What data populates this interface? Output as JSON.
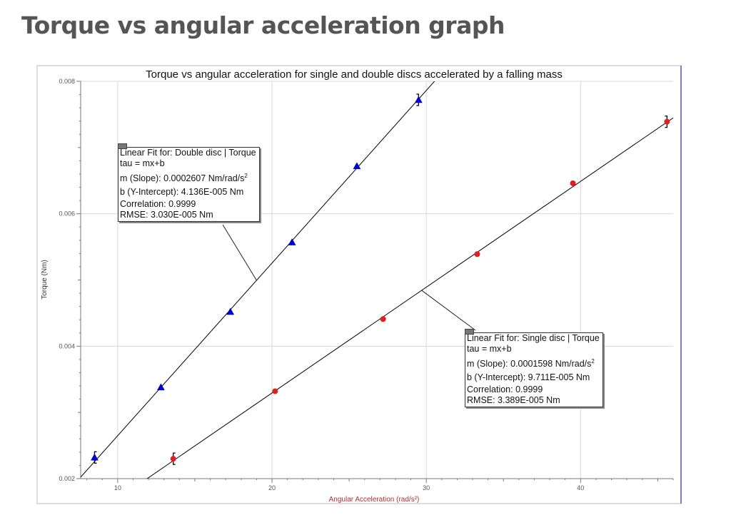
{
  "page": {
    "heading": "Torque vs angular acceleration graph"
  },
  "colors": {
    "double_marker": "#0000cc",
    "single_marker": "#e01f1f",
    "fit_line": "#000000",
    "grid": "#d8d8d8",
    "xlabel": "#b03030"
  },
  "chart_data": {
    "type": "scatter",
    "title": "Torque vs angular acceleration for single and double discs accelerated by a falling mass",
    "xlabel": "Angular Acceleration (rad/s²)",
    "ylabel": "Torque (Nm)",
    "xlim": [
      7.6,
      46
    ],
    "ylim": [
      0.002,
      0.008
    ],
    "xticks": [
      10,
      20,
      30,
      40
    ],
    "yticks": [
      0.002,
      0.004,
      0.006,
      0.008
    ],
    "xtick_labels": [
      "10",
      "20",
      "30",
      "40"
    ],
    "ytick_labels": [
      "0.002",
      "0.004",
      "0.006",
      "0.008"
    ],
    "grid": true,
    "series": [
      {
        "name": "Double disc",
        "marker": "triangle",
        "color": "#0000cc",
        "x": [
          8.5,
          12.8,
          17.3,
          21.3,
          25.5,
          29.5
        ],
        "y": [
          0.00232,
          0.00338,
          0.00452,
          0.00557,
          0.00672,
          0.00772
        ],
        "error_bars_on": [
          0,
          5
        ]
      },
      {
        "name": "Single disc",
        "marker": "circle",
        "color": "#e01f1f",
        "x": [
          13.6,
          20.2,
          27.2,
          33.3,
          39.5,
          45.6
        ],
        "y": [
          0.0023,
          0.00332,
          0.00441,
          0.00539,
          0.00646,
          0.00739
        ],
        "error_bars_on": [
          0,
          5
        ]
      }
    ],
    "fits": [
      {
        "series": "Double disc",
        "m": 0.0002607,
        "b": 4.136e-05,
        "lines": [
          "Linear Fit for: Double disc | Torque",
          "tau = mx+b",
          "m (Slope): 0.0002607 Nm/rad/s",
          "b (Y-Intercept): 4.136E-005 Nm",
          "Correlation: 0.9999",
          "RMSE: 3.030E-005 Nm"
        ],
        "slope_unit_sup": "2"
      },
      {
        "series": "Single disc",
        "m": 0.0001598,
        "b": 9.711e-05,
        "lines": [
          "Linear Fit for: Single disc | Torque",
          "tau = mx+b",
          "m (Slope): 0.0001598 Nm/rad/s",
          "b (Y-Intercept): 9.711E-005 Nm",
          "Correlation: 0.9999",
          "RMSE: 3.389E-005 Nm"
        ],
        "slope_unit_sup": "2"
      }
    ]
  }
}
